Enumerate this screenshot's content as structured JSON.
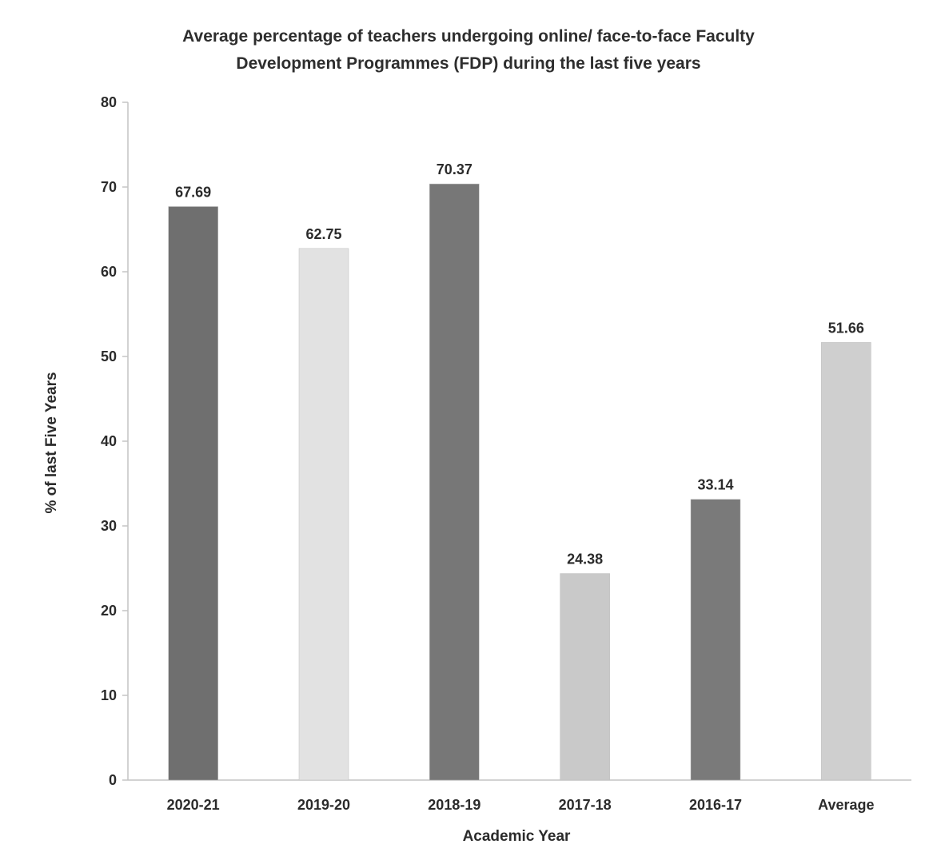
{
  "chart_data": {
    "type": "bar",
    "title_line1": "Average percentage of teachers undergoing online/ face-to-face Faculty",
    "title_line2": "Development Programmes (FDP) during the last five years",
    "xlabel": "Academic Year",
    "ylabel": "% of last Five Years",
    "ylim": [
      0,
      80
    ],
    "yticks": [
      "0",
      "10",
      "20",
      "30",
      "40",
      "50",
      "60",
      "70",
      "80"
    ],
    "grid": false,
    "categories": [
      "2020-21",
      "2019-20",
      "2018-19",
      "2017-18",
      "2016-17",
      "Average"
    ],
    "values": [
      67.69,
      62.75,
      70.37,
      24.38,
      33.14,
      51.66
    ],
    "data_labels": [
      "67.69",
      "62.75",
      "70.37",
      "24.38",
      "33.14",
      "51.66"
    ],
    "bar_colors": [
      "#6f6f6f",
      "#e2e2e2",
      "#777777",
      "#c9c9c9",
      "#7a7a7a",
      "#cfcfcf"
    ]
  }
}
